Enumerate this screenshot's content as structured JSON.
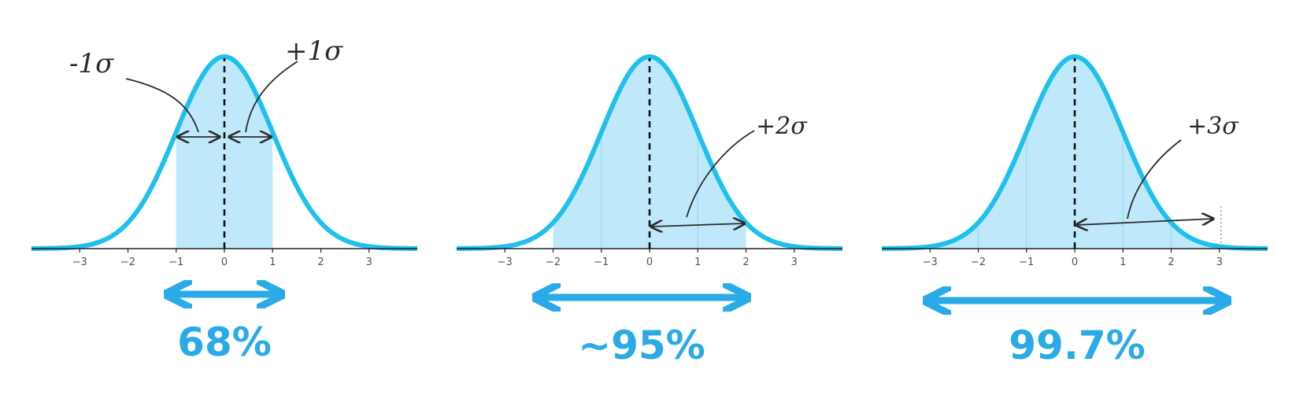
{
  "colors": {
    "curve": "#1ec0ee",
    "fill": "#bfe8fa",
    "fill_stripe": "#9fdcf4",
    "axis": "#222222",
    "annotation": "#2b2b2b",
    "percent_text": "#2aaae6"
  },
  "chart_data": [
    {
      "type": "area",
      "curve": "standard normal density",
      "xlim": [
        -4,
        4
      ],
      "xticks": [
        "−3",
        "−2",
        "−1",
        "0",
        "1",
        "2",
        "3"
      ],
      "mean": 0,
      "shaded_from": -1,
      "shaded_to": 1,
      "annotations": [
        "-1σ",
        "+1σ"
      ],
      "coverage_label": "68%"
    },
    {
      "type": "area",
      "curve": "standard normal density",
      "xlim": [
        -4,
        4
      ],
      "xticks": [
        "−3",
        "−2",
        "−1",
        "0",
        "1",
        "2",
        "3"
      ],
      "mean": 0,
      "shaded_from": -2,
      "shaded_to": 2,
      "annotations": [
        "+2σ"
      ],
      "coverage_label": "~95%"
    },
    {
      "type": "area",
      "curve": "standard normal density",
      "xlim": [
        -4,
        4
      ],
      "xticks": [
        "−3",
        "−2",
        "−1",
        "0",
        "1",
        "2",
        "3"
      ],
      "mean": 0,
      "shaded_from": -3,
      "shaded_to": 3,
      "annotations": [
        "+3σ"
      ],
      "coverage_label": "99.7%"
    }
  ]
}
